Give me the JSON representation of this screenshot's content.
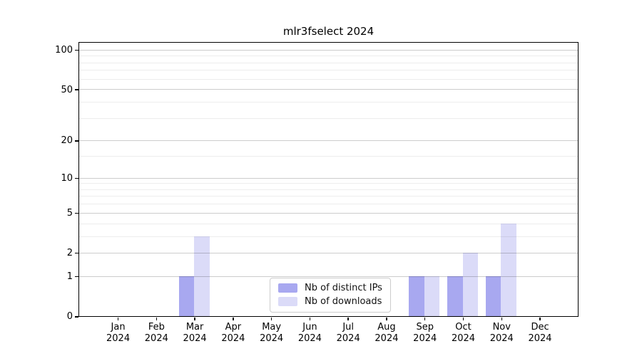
{
  "chart_data": {
    "type": "bar",
    "title": "mlr3fselect 2024",
    "categories": [
      "Jan",
      "Feb",
      "Mar",
      "Apr",
      "May",
      "Jun",
      "Jul",
      "Aug",
      "Sep",
      "Oct",
      "Nov",
      "Dec"
    ],
    "year_line": "2024",
    "series": [
      {
        "name": "Nb of distinct IPs",
        "color": "#a8a8f0",
        "values": [
          0,
          0,
          1,
          0,
          0,
          0,
          0,
          0,
          1,
          1,
          1,
          0
        ]
      },
      {
        "name": "Nb of downloads",
        "color": "#dbdbf8",
        "values": [
          0,
          0,
          3,
          0,
          0,
          0,
          0,
          0,
          1,
          2,
          4,
          0
        ]
      }
    ],
    "yscale": "log1p",
    "ylim": [
      0,
      113
    ],
    "yticks": [
      0,
      1,
      2,
      5,
      10,
      20,
      50,
      100
    ],
    "minor_yticks": [
      3,
      4,
      6,
      7,
      8,
      9,
      15,
      30,
      40,
      60,
      70,
      80,
      90
    ],
    "grid": true,
    "legend_position": "lower center",
    "xlabel": "",
    "ylabel": ""
  }
}
